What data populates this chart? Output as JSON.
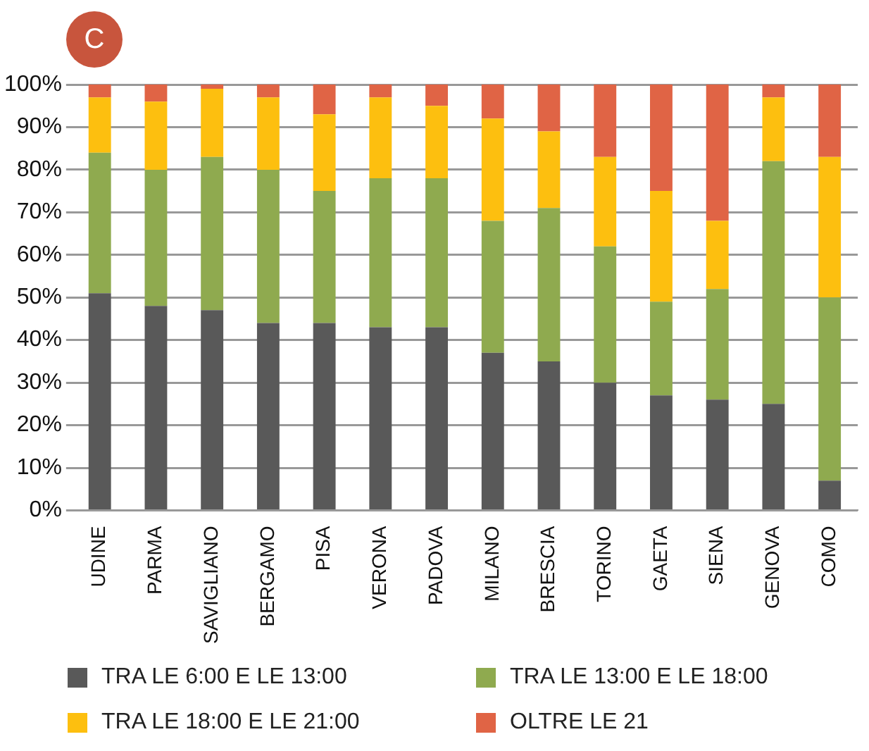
{
  "chart_data": {
    "type": "bar",
    "stacked": true,
    "annotations": [
      "C"
    ],
    "categories": [
      "UDINE",
      "PARMA",
      "SAVIGLIANO",
      "BERGAMO",
      "PISA",
      "VERONA",
      "PADOVA",
      "MILANO",
      "BRESCIA",
      "TORINO",
      "GAETA",
      "SIENA",
      "GENOVA",
      "COMO"
    ],
    "series": [
      {
        "name": "TRA LE 6:00 E LE 13:00",
        "color": "#595959",
        "values": [
          51,
          48,
          47,
          44,
          44,
          43,
          43,
          37,
          35,
          30,
          27,
          26,
          25,
          7
        ]
      },
      {
        "name": "TRA LE 13:00 E LE 18:00",
        "color": "#8faa4f",
        "values": [
          33,
          32,
          36,
          36,
          31,
          35,
          35,
          31,
          36,
          32,
          22,
          26,
          57,
          43
        ]
      },
      {
        "name": "TRA LE 18:00 E LE 21:00",
        "color": "#fdbf0f",
        "values": [
          13,
          16,
          16,
          17,
          18,
          19,
          17,
          24,
          18,
          21,
          26,
          16,
          15,
          33
        ]
      },
      {
        "name": "OLTRE LE 21",
        "color": "#e06445",
        "values": [
          3,
          4,
          1,
          3,
          7,
          3,
          5,
          8,
          11,
          17,
          25,
          32,
          3,
          17
        ]
      }
    ],
    "ylim": [
      0,
      100
    ],
    "yticks": [
      {
        "value": 0,
        "label": "0%"
      },
      {
        "value": 10,
        "label": "10%"
      },
      {
        "value": 20,
        "label": "20%"
      },
      {
        "value": 30,
        "label": "30%"
      },
      {
        "value": 40,
        "label": "40%"
      },
      {
        "value": 50,
        "label": "50%"
      },
      {
        "value": 60,
        "label": "60%"
      },
      {
        "value": 70,
        "label": "70%"
      },
      {
        "value": 80,
        "label": "80%"
      },
      {
        "value": 90,
        "label": "90%"
      },
      {
        "value": 100,
        "label": "100%"
      }
    ],
    "grid": "y",
    "legend": "bottom"
  }
}
